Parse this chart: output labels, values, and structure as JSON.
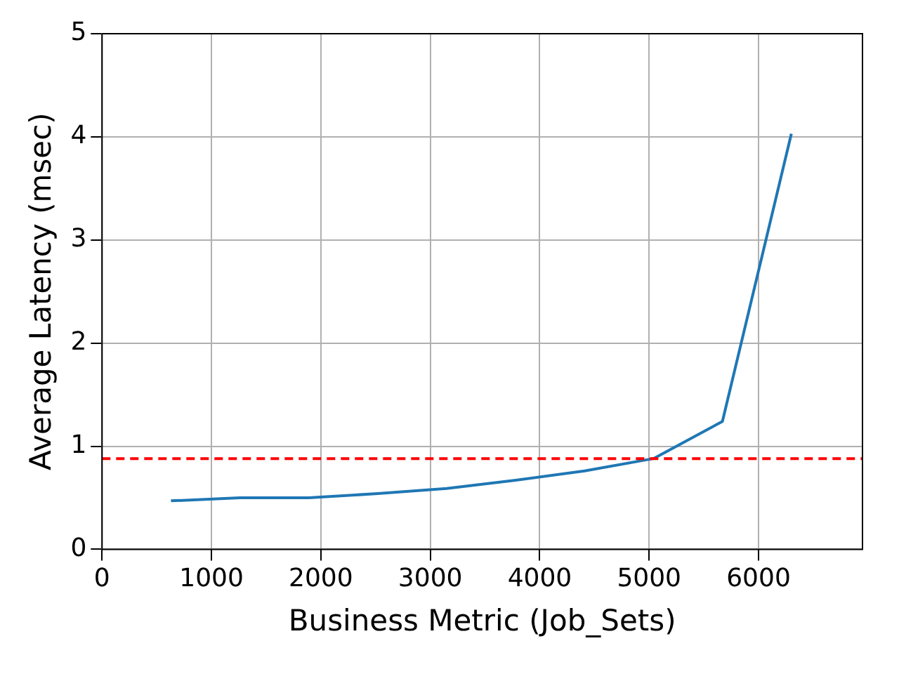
{
  "chart_data": {
    "type": "line",
    "xlabel": "Business Metric (Job_Sets)",
    "ylabel": "Average Latency (msec)",
    "x": [
      630,
      1260,
      1890,
      2520,
      3150,
      3780,
      4410,
      5040,
      5670,
      6300
    ],
    "series": [
      {
        "color": "#1f77b4",
        "values": [
          0.47,
          0.5,
          0.5,
          0.54,
          0.59,
          0.67,
          0.76,
          0.88,
          1.24,
          4.03
        ]
      }
    ],
    "xlim": [
      0,
      6950
    ],
    "xticks": [
      0,
      1000,
      2000,
      3000,
      4000,
      5000,
      6000
    ],
    "ylim": [
      0,
      5
    ],
    "yticks": [
      0,
      1,
      2,
      3,
      4,
      5
    ],
    "ref_lines": [
      {
        "axis": "y",
        "value": 0.88,
        "color": "#ff0000",
        "line_style": "dashed"
      }
    ],
    "grid": true,
    "legend": false,
    "marker": "none",
    "line_style": "solid"
  }
}
